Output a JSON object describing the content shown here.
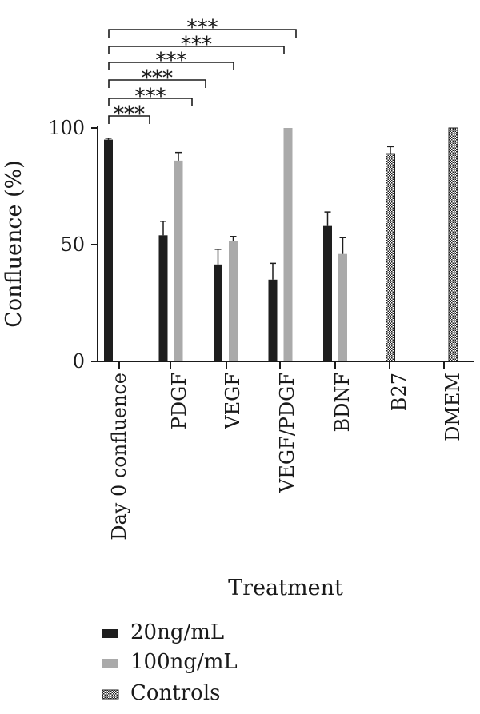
{
  "chart_data": {
    "type": "bar",
    "ylabel": "Confluence (%)",
    "xlabel": "Treatment",
    "ylim": [
      0,
      100
    ],
    "yticks": [
      "0",
      "50",
      "100"
    ],
    "categories": [
      "Day 0 confluence",
      "PDGF",
      "VEGF",
      "VEGF/PDGF",
      "BDNF",
      "B27",
      "DMEM"
    ],
    "series": [
      {
        "name": "20ng/mL",
        "color": "#1e1e1e",
        "values": [
          95,
          54,
          41.5,
          35,
          58,
          null,
          null
        ],
        "errors": [
          0.6,
          6,
          6.5,
          7,
          6,
          null,
          null
        ]
      },
      {
        "name": "100ng/mL",
        "color": "#aaaaaa",
        "values": [
          null,
          86,
          51.5,
          100,
          46,
          null,
          null
        ],
        "errors": [
          null,
          3.5,
          2,
          0,
          7,
          null,
          null
        ]
      },
      {
        "name": "Controls",
        "color": "checkered",
        "values": [
          null,
          null,
          null,
          null,
          null,
          89,
          100
        ],
        "errors": [
          null,
          null,
          null,
          null,
          null,
          3,
          0
        ]
      }
    ],
    "significance": [
      {
        "label": "***",
        "from": "Day 0 confluence",
        "to": "PDGF"
      },
      {
        "label": "***",
        "from": "Day 0 confluence",
        "to": "PDGF"
      },
      {
        "label": "***",
        "from": "Day 0 confluence",
        "to": "VEGF"
      },
      {
        "label": "***",
        "from": "Day 0 confluence",
        "to": "VEGF"
      },
      {
        "label": "***",
        "from": "Day 0 confluence",
        "to": "VEGF/PDGF"
      },
      {
        "label": "***",
        "from": "Day 0 confluence",
        "to": "VEGF/PDGF"
      }
    ],
    "legend_position": "bottom-left",
    "grid": false
  }
}
